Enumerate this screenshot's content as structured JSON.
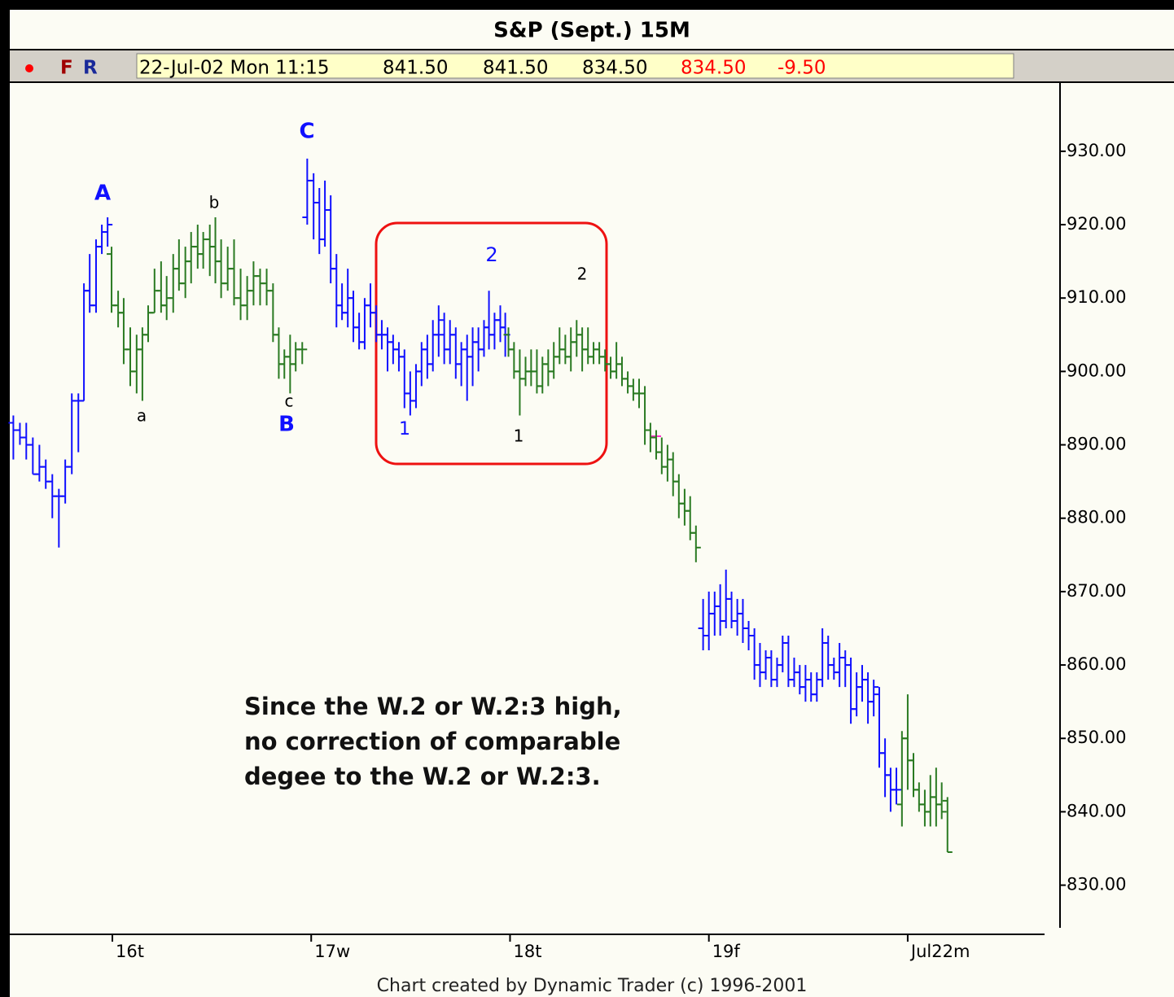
{
  "quote_bar": {
    "flags": [
      "F",
      "R"
    ],
    "fields": [
      "22-Jul-02 Mon 11:15",
      "841.50",
      "841.50",
      "834.50",
      "834.50",
      "-9.50"
    ]
  },
  "chart_data": {
    "type": "ohlc",
    "title": "S&P (Sept.) 15M",
    "credit": "Chart created by Dynamic Trader (c) 1996-2001",
    "ylim": [
      823.3,
      939.3
    ],
    "yticks": [
      {
        "value": 930,
        "label": "930.00"
      },
      {
        "value": 920,
        "label": "920.00"
      },
      {
        "value": 910,
        "label": "910.00"
      },
      {
        "value": 900,
        "label": "900.00"
      },
      {
        "value": 890,
        "label": "890.00"
      },
      {
        "value": 880,
        "label": "880.00"
      },
      {
        "value": 870,
        "label": "870.00"
      },
      {
        "value": 860,
        "label": "860.00"
      },
      {
        "value": 850,
        "label": "850.00"
      },
      {
        "value": 840,
        "label": "840.00"
      },
      {
        "value": 830,
        "label": "830.00"
      }
    ],
    "xlim": [
      -0.516,
      4.766
    ],
    "xticks": [
      {
        "value": 0,
        "label": "16t"
      },
      {
        "value": 1,
        "label": "17w"
      },
      {
        "value": 2,
        "label": "18t"
      },
      {
        "value": 3,
        "label": "19f"
      },
      {
        "value": 4,
        "label": "Jul22m"
      }
    ],
    "annotations": [
      "A",
      "b",
      "a",
      "c",
      "B",
      "C",
      "1",
      "2",
      "2",
      "1"
    ],
    "note": [
      "Since the W.2 or W.2:3 high,",
      "no correction of comparable",
      "degee to the W.2 or W.2:3."
    ],
    "series": [
      {
        "color": "#1010ff",
        "x": [
          -0.498,
          -0.465,
          -0.433,
          -0.4,
          -0.367,
          -0.335,
          -0.302,
          -0.269,
          -0.237,
          -0.204,
          -0.171,
          -0.143,
          -0.114,
          -0.082,
          -0.053,
          -0.024
        ],
        "open": [
          893,
          892,
          891,
          890,
          886,
          887,
          885,
          883,
          883,
          887,
          896,
          896,
          911,
          909,
          917,
          919
        ],
        "high": [
          894,
          893,
          893,
          891,
          890,
          888,
          886,
          884,
          888,
          897,
          897,
          912,
          916,
          918,
          920,
          921
        ],
        "low": [
          888,
          890,
          888,
          886,
          885,
          884,
          880,
          876,
          882,
          886,
          889,
          896,
          908,
          908,
          916,
          917
        ],
        "close": [
          892,
          891,
          890,
          886,
          887,
          885,
          883,
          883,
          887,
          896,
          896,
          911,
          909,
          917,
          919,
          920
        ]
      },
      {
        "color": "#2a7a22",
        "x": [
          -0.004,
          0.029,
          0.057,
          0.09,
          0.122,
          0.151,
          0.18,
          0.212,
          0.245,
          0.273,
          0.306,
          0.335,
          0.367,
          0.396,
          0.429,
          0.457,
          0.49,
          0.518,
          0.547,
          0.58,
          0.612,
          0.645,
          0.678,
          0.71,
          0.743,
          0.776,
          0.808,
          0.837,
          0.865,
          0.894,
          0.922,
          0.955
        ],
        "open": [
          916,
          909,
          908,
          903,
          900,
          903,
          905,
          908,
          911,
          909,
          910,
          914,
          912,
          915,
          917,
          916,
          918,
          917,
          915,
          912,
          914,
          910,
          909,
          911,
          913,
          912,
          911,
          905,
          901,
          902,
          901,
          903
        ],
        "high": [
          917,
          911,
          910,
          906,
          905,
          906,
          909,
          914,
          915,
          913,
          916,
          918,
          917,
          919,
          920,
          919,
          920,
          921,
          918,
          917,
          918,
          914,
          913,
          915,
          914,
          914,
          912,
          906,
          903,
          905,
          904,
          904
        ],
        "low": [
          908,
          906,
          901,
          898,
          897,
          896,
          904,
          908,
          908,
          907,
          908,
          911,
          910,
          912,
          914,
          914,
          913,
          912,
          910,
          911,
          909,
          907,
          907,
          909,
          909,
          909,
          904,
          899,
          899,
          897,
          900,
          901
        ],
        "close": [
          909,
          908,
          903,
          900,
          903,
          905,
          908,
          911,
          909,
          910,
          914,
          912,
          915,
          917,
          916,
          918,
          917,
          915,
          912,
          914,
          910,
          909,
          911,
          913,
          912,
          911,
          905,
          901,
          902,
          901,
          903,
          903
        ]
      },
      {
        "color": "#1010ff",
        "x": [
          0.98,
          1.012,
          1.041,
          1.069,
          1.098,
          1.127,
          1.155,
          1.184,
          1.212,
          1.241,
          1.269,
          1.298,
          1.327,
          1.355,
          1.384,
          1.412,
          1.441,
          1.469,
          1.498,
          1.527,
          1.555,
          1.584,
          1.612,
          1.641,
          1.669,
          1.698,
          1.727,
          1.755,
          1.784,
          1.812,
          1.841,
          1.869,
          1.894,
          1.922,
          1.951,
          1.976
        ],
        "open": [
          921,
          926,
          923,
          918,
          922,
          914,
          909,
          908,
          910,
          906,
          904,
          909,
          908,
          905,
          905,
          904,
          903,
          902,
          897,
          896,
          900,
          903,
          901,
          905,
          905,
          903,
          905,
          901,
          903,
          902,
          904,
          903,
          906,
          905,
          907,
          906
        ],
        "high": [
          929,
          927,
          925,
          926,
          924,
          916,
          912,
          914,
          911,
          908,
          910,
          912,
          909,
          907,
          906,
          905,
          904,
          903,
          900,
          901,
          904,
          905,
          907,
          909,
          908,
          907,
          906,
          904,
          905,
          906,
          906,
          907,
          911,
          908,
          909,
          908
        ],
        "low": [
          920,
          918,
          916,
          917,
          912,
          906,
          907,
          906,
          904,
          903,
          903,
          906,
          904,
          903,
          900,
          901,
          900,
          895,
          894,
          895,
          898,
          899,
          900,
          902,
          901,
          901,
          899,
          898,
          896,
          898,
          900,
          902,
          903,
          903,
          904,
          902
        ],
        "close": [
          926,
          923,
          918,
          922,
          914,
          909,
          908,
          910,
          906,
          904,
          909,
          908,
          905,
          905,
          904,
          903,
          902,
          897,
          896,
          900,
          903,
          901,
          905,
          907,
          903,
          905,
          901,
          903,
          902,
          904,
          903,
          906,
          905,
          907,
          906,
          905
        ]
      },
      {
        "color": "#2a7a22",
        "x": [
          1.992,
          2.02,
          2.049,
          2.078,
          2.106,
          2.135,
          2.163,
          2.192,
          2.22,
          2.249,
          2.278,
          2.306,
          2.335,
          2.363,
          2.392,
          2.42,
          2.449,
          2.478,
          2.506,
          2.535,
          2.563,
          2.592,
          2.62,
          2.649,
          2.678,
          2.706,
          2.735,
          2.763,
          2.792,
          2.82,
          2.849,
          2.878,
          2.906,
          2.935
        ],
        "open": [
          905,
          903,
          900,
          899,
          900,
          900,
          898,
          901,
          900,
          902,
          903,
          902,
          904,
          905,
          903,
          902,
          903,
          902,
          901,
          900,
          901,
          899,
          898,
          897,
          897,
          892,
          891,
          889,
          887,
          888,
          885,
          882,
          881,
          878
        ],
        "high": [
          906,
          904,
          903,
          902,
          903,
          903,
          902,
          903,
          904,
          906,
          905,
          906,
          907,
          906,
          906,
          904,
          904,
          903,
          902,
          904,
          902,
          900,
          899,
          899,
          898,
          893,
          892,
          891,
          890,
          889,
          886,
          884,
          883,
          879
        ],
        "low": [
          902,
          899,
          894,
          898,
          898,
          897,
          897,
          898,
          899,
          901,
          901,
          900,
          902,
          900,
          901,
          901,
          901,
          900,
          899,
          899,
          898,
          897,
          896,
          895,
          890,
          889,
          888,
          886,
          885,
          883,
          880,
          879,
          877,
          874
        ],
        "close": [
          903,
          900,
          899,
          900,
          900,
          898,
          901,
          900,
          902,
          903,
          902,
          904,
          905,
          903,
          902,
          903,
          902,
          901,
          900,
          901,
          899,
          898,
          897,
          897,
          892,
          891,
          889,
          887,
          888,
          885,
          882,
          881,
          878,
          876
        ]
      },
      {
        "color": "#1010ff",
        "x": [
          2.971,
          3,
          3.029,
          3.057,
          3.086,
          3.114,
          3.143,
          3.171,
          3.2,
          3.229,
          3.257,
          3.286,
          3.314,
          3.343,
          3.371,
          3.4,
          3.429,
          3.457,
          3.486,
          3.514,
          3.543,
          3.571,
          3.6,
          3.629,
          3.657,
          3.686,
          3.714,
          3.743,
          3.771,
          3.8,
          3.829,
          3.857,
          3.886,
          3.914,
          3.943
        ],
        "open": [
          865,
          864,
          867,
          868,
          866,
          869,
          866,
          867,
          865,
          864,
          860,
          859,
          861,
          858,
          860,
          863,
          858,
          859,
          857,
          858,
          856,
          858,
          863,
          860,
          859,
          861,
          860,
          854,
          857,
          858,
          855,
          856,
          848,
          845,
          843
        ],
        "high": [
          869,
          870,
          870,
          871,
          873,
          870,
          869,
          869,
          866,
          865,
          863,
          862,
          862,
          861,
          864,
          864,
          861,
          860,
          860,
          859,
          859,
          865,
          864,
          861,
          863,
          862,
          861,
          859,
          860,
          859,
          858,
          857,
          850,
          846,
          846
        ],
        "low": [
          862,
          862,
          864,
          864,
          865,
          865,
          864,
          863,
          862,
          858,
          857,
          858,
          857,
          857,
          859,
          857,
          857,
          856,
          855,
          855,
          855,
          857,
          858,
          858,
          857,
          857,
          852,
          853,
          855,
          852,
          853,
          846,
          842,
          840,
          841
        ],
        "close": [
          864,
          867,
          868,
          866,
          869,
          866,
          867,
          865,
          864,
          860,
          859,
          861,
          858,
          860,
          863,
          858,
          859,
          857,
          858,
          856,
          858,
          863,
          860,
          859,
          861,
          860,
          854,
          857,
          858,
          855,
          857,
          848,
          845,
          843,
          843
        ]
      },
      {
        "color": "#2a7a22",
        "x": [
          3.971,
          4,
          4.029,
          4.057,
          4.086,
          4.114,
          4.143,
          4.171,
          4.2
        ],
        "open": [
          841,
          850,
          847,
          843,
          841,
          840,
          842,
          841,
          841.5
        ],
        "high": [
          851,
          856,
          848,
          844,
          843,
          845,
          846,
          844,
          842
        ],
        "low": [
          838,
          843,
          842,
          840,
          838,
          838,
          838,
          839,
          834.5
        ],
        "close": [
          850,
          847,
          843,
          841,
          840,
          842,
          841,
          840,
          834.5
        ]
      }
    ]
  }
}
